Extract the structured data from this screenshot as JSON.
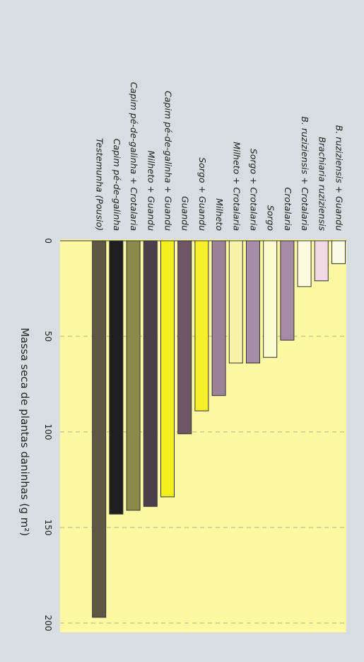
{
  "chart_data": {
    "type": "bar",
    "orientation": "horizontal",
    "categories": [
      "B. ruziziensis + Guandu",
      "Brachiaria ruziziensis",
      "B. ruziziensis + Crotalaria",
      "Crotalaria",
      "Sorgo",
      "Sorgo + Crotalaria",
      "Milheto + Crotalaria",
      "Milheto",
      "Sorgo + Guandu",
      "Guandu",
      "Capim pé-de-galinha + Guandu",
      "Milheto + Guandu",
      "Capim pé-de-galinha + Crotalaria",
      "Capim pé-de-galinha",
      "Testemunha (Pousio)"
    ],
    "values": [
      12,
      21,
      24,
      52,
      61,
      64,
      64,
      81,
      89,
      101,
      134,
      139,
      141,
      143,
      197
    ],
    "bar_colors": [
      "#fbfbe6",
      "#efd9e4",
      "#fdfbe0",
      "#a78aa3",
      "#fcfcd0",
      "#a58ea6",
      "#f7f4a8",
      "#9b8299",
      "#f6ef2a",
      "#6d5666",
      "#f4f020",
      "#4b3f4c",
      "#8c8a4a",
      "#1f1f22",
      "#5e5744"
    ],
    "xlabel": "Massa seca de plantas daninhas (g m²)",
    "xlim": [
      0,
      200
    ],
    "xticks": [
      "0",
      "50",
      "100",
      "150",
      "200"
    ],
    "grid": true,
    "plot_background": "#fdf9a3",
    "page_background": "#d7dde0"
  }
}
